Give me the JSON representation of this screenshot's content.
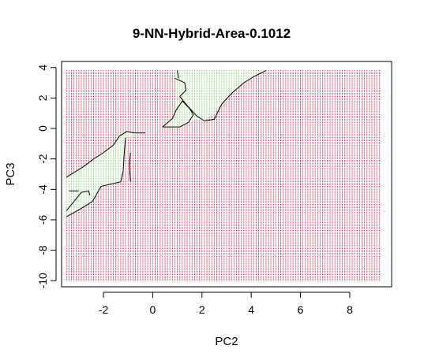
{
  "chart_data": {
    "type": "heatmap",
    "title": "9-NN-Hybrid-Area-0.1012",
    "xlabel": "PC2",
    "ylabel": "PC3",
    "xlim": [
      -3.7,
      9.7
    ],
    "ylim": [
      -10.4,
      4.4
    ],
    "xticks": [
      -2,
      0,
      2,
      4,
      6,
      8
    ],
    "yticks": [
      4,
      2,
      0,
      -2,
      -4,
      -6,
      -8,
      -10
    ],
    "grid": {
      "x_range": [
        -3.5,
        9.2
      ],
      "y_range": [
        -10.0,
        3.8
      ],
      "x_step": 0.1,
      "y_step": 0.1
    },
    "classes": [
      {
        "name": "class-1",
        "color": "#c8102e"
      },
      {
        "name": "class-2",
        "color": "#7fd36a"
      }
    ],
    "regions": [
      {
        "class": "class-2",
        "polygon": [
          [
            -3.5,
            -3.2
          ],
          [
            -3.2,
            -2.9
          ],
          [
            -2.8,
            -2.5
          ],
          [
            -2.4,
            -2.0
          ],
          [
            -2.0,
            -1.6
          ],
          [
            -1.6,
            -1.1
          ],
          [
            -1.35,
            -0.5
          ],
          [
            -1.05,
            -0.2
          ],
          [
            -0.75,
            -0.3
          ],
          [
            -0.3,
            -0.3
          ],
          [
            -1.1,
            -0.6
          ],
          [
            -1.15,
            -1.5
          ],
          [
            -1.2,
            -2.8
          ],
          [
            -1.3,
            -3.5
          ],
          [
            -2.1,
            -3.8
          ],
          [
            -2.45,
            -4.8
          ],
          [
            -2.95,
            -5.3
          ],
          [
            -3.5,
            -5.8
          ]
        ]
      },
      {
        "class": "class-2",
        "polygon": [
          [
            0.4,
            0.1
          ],
          [
            0.8,
            0.65
          ],
          [
            0.95,
            1.2
          ],
          [
            1.0,
            2.0
          ],
          [
            0.9,
            3.8
          ],
          [
            4.6,
            3.8
          ],
          [
            4.1,
            3.4
          ],
          [
            3.7,
            3.0
          ],
          [
            3.2,
            2.3
          ],
          [
            2.8,
            1.7
          ],
          [
            2.5,
            1.0
          ],
          [
            2.1,
            0.5
          ],
          [
            1.75,
            0.6
          ],
          [
            1.45,
            0.4
          ],
          [
            1.1,
            0.1
          ]
        ]
      }
    ],
    "boundaries": [
      [
        [
          -3.5,
          -3.2
        ],
        [
          -3.2,
          -2.9
        ],
        [
          -2.8,
          -2.5
        ],
        [
          -2.4,
          -2.0
        ],
        [
          -2.0,
          -1.6
        ],
        [
          -1.6,
          -1.1
        ],
        [
          -1.35,
          -0.5
        ],
        [
          -1.05,
          -0.2
        ],
        [
          -0.75,
          -0.3
        ],
        [
          -0.3,
          -0.3
        ]
      ],
      [
        [
          -1.1,
          -0.6
        ],
        [
          -1.15,
          -1.5
        ],
        [
          -1.2,
          -2.8
        ],
        [
          -1.3,
          -3.5
        ],
        [
          -2.1,
          -3.8
        ],
        [
          -2.45,
          -4.8
        ],
        [
          -2.95,
          -5.3
        ],
        [
          -3.5,
          -5.8
        ]
      ],
      [
        [
          -3.5,
          -5.4
        ],
        [
          -3.1,
          -4.6
        ],
        [
          -2.9,
          -4.2
        ],
        [
          -2.6,
          -4.1
        ],
        [
          -2.55,
          -4.4
        ]
      ],
      [
        [
          -3.0,
          -4.1
        ],
        [
          -3.4,
          -4.1
        ]
      ],
      [
        [
          -0.9,
          -1.6
        ],
        [
          -0.95,
          -2.4
        ],
        [
          -0.9,
          -3.5
        ]
      ],
      [
        [
          0.4,
          0.1
        ],
        [
          0.8,
          0.65
        ],
        [
          0.95,
          1.2
        ],
        [
          1.2,
          1.8
        ],
        [
          1.5,
          1.3
        ],
        [
          1.65,
          0.9
        ],
        [
          1.45,
          0.4
        ],
        [
          1.1,
          0.1
        ],
        [
          0.4,
          0.1
        ]
      ],
      [
        [
          0.9,
          3.3
        ],
        [
          1.3,
          3.0
        ],
        [
          1.35,
          2.5
        ],
        [
          1.1,
          2.1
        ],
        [
          1.4,
          1.5
        ],
        [
          1.8,
          0.8
        ],
        [
          2.1,
          0.5
        ],
        [
          2.5,
          0.6
        ],
        [
          2.8,
          1.6
        ],
        [
          3.2,
          2.3
        ],
        [
          3.7,
          3.0
        ],
        [
          4.1,
          3.4
        ],
        [
          4.6,
          3.8
        ]
      ],
      [
        [
          1.0,
          3.8
        ],
        [
          1.05,
          3.3
        ]
      ]
    ]
  }
}
